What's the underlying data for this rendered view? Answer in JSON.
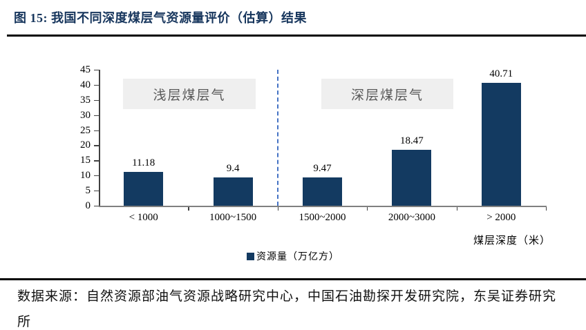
{
  "figure": {
    "title": "图 15:  我国不同深度煤层气资源量评价（估算）结果",
    "source": "数据来源：自然资源部油气资源战略研究中心，中国石油勘探开发研究院，东吴证券研究所"
  },
  "chart_data": {
    "type": "bar",
    "title": "我国不同深度煤层气资源量评价（估算）结果",
    "categories": [
      "< 1000",
      "1000~1500",
      "1500~2000",
      "2000~3000",
      "> 2000"
    ],
    "values": [
      11.18,
      9.4,
      9.47,
      18.47,
      40.71
    ],
    "series_name": "资源量（万亿方）",
    "legend": "资源量（万亿方）",
    "xlabel": "煤层深度（米）",
    "ylabel": "",
    "ylim": [
      0,
      45
    ],
    "y_ticks": [
      0,
      5,
      10,
      15,
      20,
      25,
      30,
      35,
      40,
      45
    ],
    "grid": false,
    "legend_position": "bottom",
    "annotations": [
      {
        "text": "浅层煤层气",
        "region_categories": [
          "< 1000",
          "1000~1500"
        ]
      },
      {
        "text": "深层煤层气",
        "region_categories": [
          "1500~2000",
          "2000~3000",
          "> 2000"
        ]
      }
    ],
    "divider_after_category_index": 1,
    "colors": {
      "bar": "#133A61",
      "divider": "#4472C4",
      "annotation_bg": "#EFEFEF",
      "annotation_text": "#595959",
      "title": "#17365D",
      "axis": "#404040"
    }
  }
}
